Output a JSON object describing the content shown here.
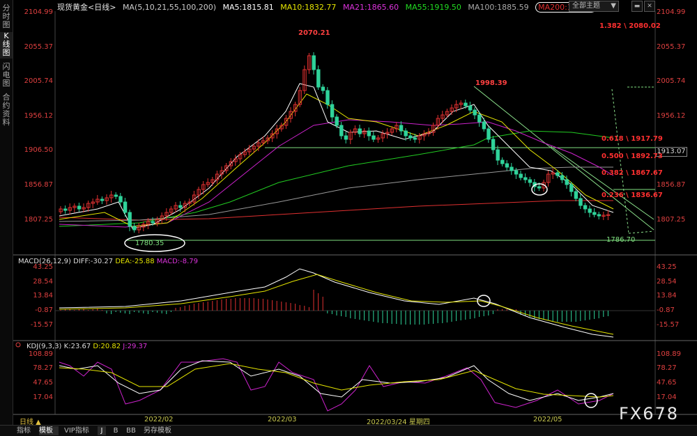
{
  "sidebar": {
    "tabs": [
      {
        "label": "分时图",
        "active": false
      },
      {
        "label": "K线图",
        "active": true
      },
      {
        "label": "闪电图",
        "active": false
      },
      {
        "label": "合约资料",
        "active": false
      }
    ]
  },
  "header": {
    "symbol": "现货黄金<日线>",
    "ma_params": "MA(5,10,21,55,100,200)",
    "ma5": "MA5:1815.81",
    "ma10": "MA10:1832.77",
    "ma21": "MA21:1865.60",
    "ma55": "MA55:1919.50",
    "ma100": "MA100:1885.59",
    "ma200": "MA200:1838.3",
    "theme_button": "全部主题"
  },
  "colors": {
    "ma5": "#ffffff",
    "ma10": "#e6e600",
    "ma21": "#cc00cc",
    "ma55": "#00cc00",
    "ma100": "#999999",
    "ma200": "#e03030",
    "up_candle": "#e03030",
    "down_candle": "#2fd39a",
    "fib": "#ff2a2a"
  },
  "price_axis": {
    "left": [
      "2104.99",
      "2055.37",
      "2005.74",
      "1956.12",
      "1906.50",
      "1856.87",
      "1807.25"
    ],
    "right": [
      "2104.99",
      "2055.37",
      "2005.74",
      "1956.12",
      "1906.50",
      "1856.87",
      "1807.25"
    ],
    "current_price": "1913.07"
  },
  "annotations": {
    "high1": "2070.21",
    "high2": "1998.39",
    "low1": "1780.35",
    "low2": "1786.70",
    "fib_ext": "1.382 \\ 2080.02",
    "fib618": "0.618 \\ 1917.79",
    "fib500": "0.500 \\ 1892.73",
    "fib382": "0.382 \\ 1867.67",
    "fib236": "0.236 \\ 1836.67"
  },
  "macd": {
    "legend_title": "MACD(26,12,9)",
    "diff": "DIFF:-30.27",
    "dea": "DEA:-25.88",
    "macd": "MACD:-8.79",
    "axis": [
      "43.25",
      "28.54",
      "13.84",
      "-0.87",
      "-15.57"
    ]
  },
  "kdj": {
    "legend_title": "KDJ(9,3,3)",
    "k": "K:23.67",
    "d": "D:20.82",
    "j": "J:29.37",
    "axis": [
      "108.89",
      "78.27",
      "47.65",
      "17.04"
    ]
  },
  "x_axis": {
    "mode": "日线 ▲",
    "labels": [
      "2022/02",
      "2022/03",
      "2022/03/24 星期四",
      "2022/05"
    ]
  },
  "bottom_tabs": [
    "指标",
    "模板",
    "VIP指标",
    "J",
    "B",
    "BB",
    "另存模板"
  ],
  "watermark": "FX678"
}
